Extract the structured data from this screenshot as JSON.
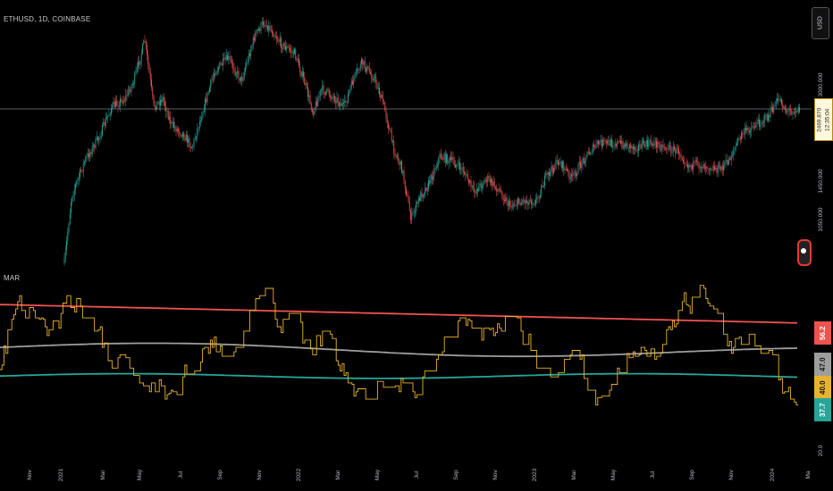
{
  "header": {
    "symbol_title": "ETHUSD, 1D, COINBASE",
    "indicator_title": "MAR"
  },
  "toolbar": {
    "currency_label": "USD"
  },
  "price_badge": {
    "price": "2469.870",
    "countdown": "12:35:04"
  },
  "chart_data": {
    "type": "line",
    "panes": [
      {
        "name": "price",
        "series_type": "candlestick",
        "y_ticks": [
          "3000.000",
          "1450.000",
          "1050.000"
        ],
        "last_price": 2469.87,
        "price_line": 2469.87,
        "colors": {
          "up": "#26a69a",
          "down": "#ef5350",
          "price_line": "#787b86"
        }
      },
      {
        "name": "indicator",
        "y_ticks": [
          "20.0"
        ],
        "ylim": [
          15,
          70
        ],
        "series": [
          {
            "color": "#ef5350",
            "label_value": "56.2"
          },
          {
            "color": "#9e9e9e",
            "label_value": "47.0"
          },
          {
            "color": "#26a69a",
            "label_value": "37.7"
          },
          {
            "color": "#e8b32c",
            "label_value": "40.0"
          }
        ]
      }
    ],
    "x_tick_labels": [
      "Nov",
      "2021",
      "Mar",
      "May",
      "Jul",
      "Sep",
      "Nov",
      "2022",
      "Mar",
      "May",
      "Jul",
      "Sep",
      "Nov",
      "2023",
      "Mar",
      "May",
      "Jul",
      "Sep",
      "Nov",
      "2024",
      "Ma"
    ],
    "grid": false
  }
}
